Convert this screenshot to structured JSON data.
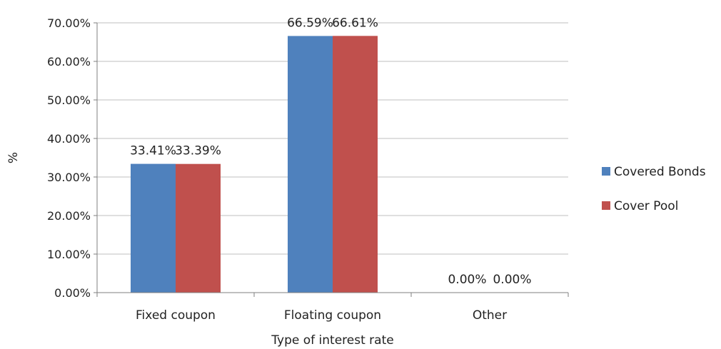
{
  "chart_data": {
    "type": "bar",
    "title": "",
    "xlabel": "Type of interest rate",
    "ylabel": "%",
    "categories": [
      "Fixed coupon",
      "Floating coupon",
      "Other"
    ],
    "series": [
      {
        "name": "Covered Bonds",
        "values": [
          33.41,
          66.59,
          0.0
        ],
        "labels": [
          "33.41%",
          "66.59%",
          "0.00%"
        ],
        "color": "#4f81bd"
      },
      {
        "name": "Cover Pool",
        "values": [
          33.39,
          66.61,
          0.0
        ],
        "labels": [
          "33.39%",
          "66.61%",
          "0.00%"
        ],
        "color": "#c0504d"
      }
    ],
    "ylim": [
      0,
      70
    ],
    "yticks": [
      0,
      10,
      20,
      30,
      40,
      50,
      60,
      70
    ],
    "ytick_labels": [
      "0.00%",
      "10.00%",
      "20.00%",
      "30.00%",
      "40.00%",
      "50.00%",
      "60.00%",
      "70.00%"
    ],
    "grid": true,
    "legend_position": "right"
  }
}
